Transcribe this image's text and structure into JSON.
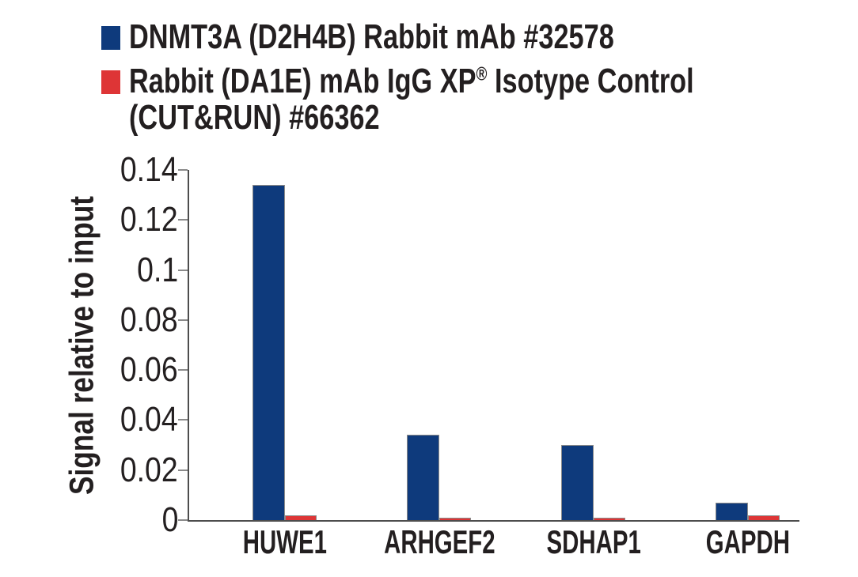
{
  "colors": {
    "series_blue": "#0e3a7c",
    "series_red": "#de3536",
    "bar_border": "#8a8a8a",
    "axis_line": "#4d4d4d",
    "tick_line": "#8a8a8a",
    "text": "#231f20",
    "background": "#ffffff"
  },
  "legend": {
    "items": [
      {
        "label": "DNMT3A (D2H4B) Rabbit mAb #32578",
        "color": "#0e3a7c"
      },
      {
        "label": "Rabbit (DA1E) mAb IgG XP® Isotype Control (CUT&RUN) #66362",
        "label_pre": "Rabbit (DA1E) mAb IgG XP",
        "label_sup": "®",
        "label_post": " Isotype Control",
        "label_line2": "(CUT&RUN) #66362",
        "color": "#de3536"
      }
    ]
  },
  "chart_data": {
    "type": "bar",
    "title": "",
    "xlabel": "",
    "ylabel": "Signal relative to input",
    "categories": [
      "HUWE1",
      "ARHGEF2",
      "SDHAP1",
      "GAPDH"
    ],
    "series": [
      {
        "name": "DNMT3A (D2H4B) Rabbit mAb #32578",
        "color": "#0e3a7c",
        "values": [
          0.134,
          0.034,
          0.03,
          0.007
        ]
      },
      {
        "name": "Rabbit (DA1E) mAb IgG XP® Isotype Control (CUT&RUN) #66362",
        "color": "#de3536",
        "values": [
          0.002,
          0.001,
          0.001,
          0.002
        ]
      }
    ],
    "ylim": [
      0,
      0.14
    ],
    "yticks": [
      0,
      0.02,
      0.04,
      0.06,
      0.08,
      0.1,
      0.12,
      0.14
    ],
    "ytick_labels": [
      "0",
      "0.02",
      "0.04",
      "0.06",
      "0.08",
      "0.1",
      "0.12",
      "0.14"
    ],
    "grid": false,
    "legend_position": "top-left"
  }
}
